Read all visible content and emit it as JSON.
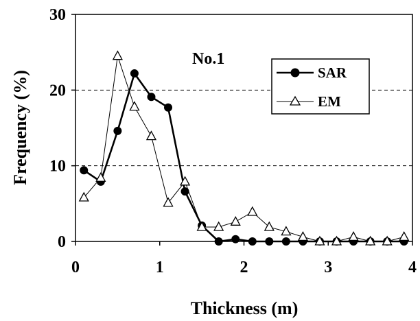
{
  "chart_data": {
    "type": "line",
    "xlabel": "Thickness (m)",
    "ylabel": "Frequency (%)",
    "annotation": "No.1",
    "xlim": [
      0,
      4
    ],
    "ylim": [
      0,
      30
    ],
    "x_ticks": [
      0,
      1,
      2,
      3,
      4
    ],
    "y_ticks": [
      0,
      10,
      20,
      30
    ],
    "grid": "horizontal dashed at 10 and 20",
    "legend_position": "top-right",
    "series": [
      {
        "name": "SAR",
        "marker": "filled-circle",
        "line": "thick",
        "color": "#000000",
        "x": [
          0.1,
          0.3,
          0.5,
          0.7,
          0.9,
          1.1,
          1.3,
          1.5,
          1.7,
          1.9,
          2.1,
          2.3,
          2.5,
          2.7,
          2.9,
          3.1,
          3.3,
          3.5,
          3.7,
          3.9
        ],
        "y": [
          9.4,
          7.9,
          14.6,
          22.2,
          19.1,
          17.7,
          6.6,
          2.1,
          0.0,
          0.3,
          0.0,
          0.0,
          0.0,
          0.0,
          0.0,
          0.0,
          0.0,
          0.0,
          0.0,
          0.0
        ]
      },
      {
        "name": "EM",
        "marker": "open-triangle",
        "line": "thin",
        "color": "#000000",
        "x": [
          0.1,
          0.3,
          0.5,
          0.7,
          0.9,
          1.1,
          1.3,
          1.5,
          1.7,
          1.9,
          2.1,
          2.3,
          2.5,
          2.7,
          2.9,
          3.1,
          3.3,
          3.5,
          3.7,
          3.9
        ],
        "y": [
          5.8,
          8.4,
          24.5,
          17.8,
          13.9,
          5.1,
          7.9,
          1.9,
          1.9,
          2.6,
          3.9,
          1.9,
          1.3,
          0.6,
          0.0,
          0.0,
          0.6,
          0.0,
          0.0,
          0.6
        ]
      }
    ]
  }
}
